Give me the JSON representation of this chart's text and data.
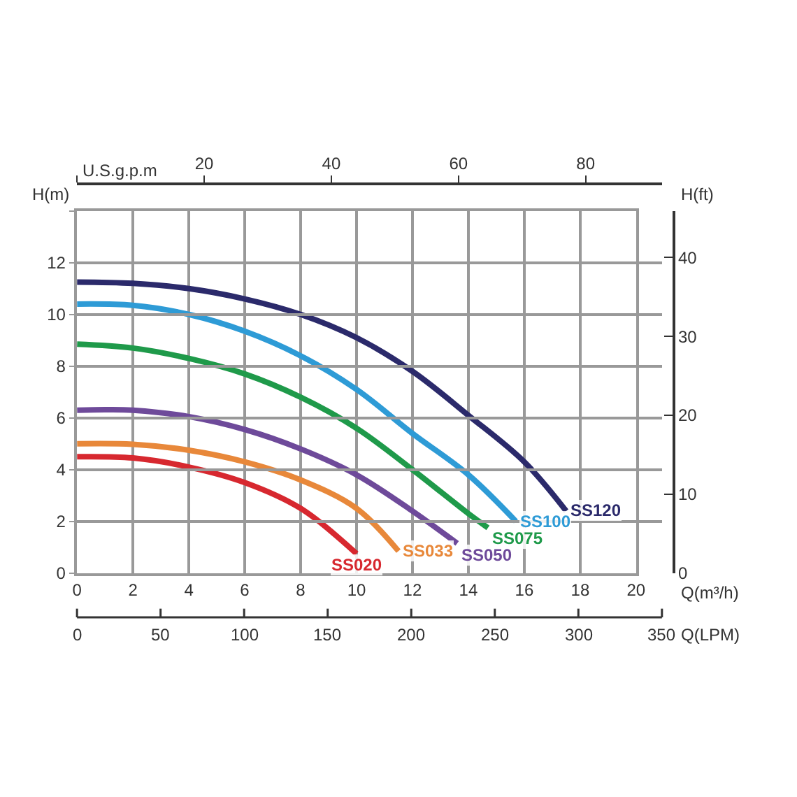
{
  "chart_data": {
    "type": "line",
    "xlabel": "Q(m³/h)",
    "ylabel": "H(m)",
    "y2label": "H(ft)",
    "x2label": "U.S.g.p.m",
    "annotations": [
      "Q(LPM)",
      "0",
      "50",
      "100",
      "150",
      "200",
      "250",
      "300",
      "350"
    ],
    "xlim": [
      0,
      20
    ],
    "xticks": [
      0,
      2,
      4,
      6,
      8,
      10,
      12,
      14,
      16,
      18,
      20
    ],
    "ylim": [
      0,
      14
    ],
    "yticks": [
      0,
      2,
      4,
      6,
      8,
      10,
      12,
      {
        "value": 14,
        "label": null
      }
    ],
    "y2lim": [
      0,
      45.9
    ],
    "y2ticks": [
      0,
      10,
      20,
      30,
      40
    ],
    "x2lim": [
      0,
      92
    ],
    "x2ticks": [
      {
        "value": 0,
        "label": null
      },
      20,
      40,
      60,
      80
    ],
    "grid": true,
    "legend": false,
    "marker": "none",
    "line_style": "solid",
    "series": [
      {
        "name": "SS120",
        "color": "#2b2a6b",
        "x": [
          0,
          2,
          4,
          6,
          8,
          10,
          12,
          14,
          16,
          17.5
        ],
        "values": [
          11.25,
          11.2,
          11.0,
          10.6,
          10.0,
          9.1,
          7.8,
          6.1,
          4.3,
          2.4
        ]
      },
      {
        "name": "SS100",
        "color": "#2e9bd6",
        "x": [
          0,
          2,
          4,
          6,
          8,
          10,
          12,
          14,
          15.7
        ],
        "values": [
          10.4,
          10.35,
          10.0,
          9.35,
          8.4,
          7.1,
          5.4,
          3.8,
          2.0
        ]
      },
      {
        "name": "SS075",
        "color": "#1f9a4a",
        "x": [
          0,
          2,
          4,
          6,
          8,
          10,
          12,
          14,
          14.7
        ],
        "values": [
          8.85,
          8.7,
          8.3,
          7.7,
          6.8,
          5.6,
          4.0,
          2.3,
          1.75
        ]
      },
      {
        "name": "SS050",
        "color": "#6e4a9a",
        "x": [
          0,
          1,
          2,
          4,
          6,
          8,
          10,
          12,
          13.6
        ],
        "values": [
          6.3,
          6.32,
          6.3,
          6.05,
          5.55,
          4.8,
          3.8,
          2.4,
          1.15
        ]
      },
      {
        "name": "SS033",
        "color": "#e8883a",
        "x": [
          0,
          2,
          4,
          6,
          8,
          10,
          11.5
        ],
        "values": [
          5.0,
          4.98,
          4.75,
          4.3,
          3.6,
          2.5,
          0.85
        ]
      },
      {
        "name": "SS020",
        "color": "#d7282f",
        "x": [
          0,
          2,
          4,
          6,
          8,
          10
        ],
        "values": [
          4.5,
          4.45,
          4.1,
          3.5,
          2.5,
          0.75
        ]
      }
    ]
  }
}
